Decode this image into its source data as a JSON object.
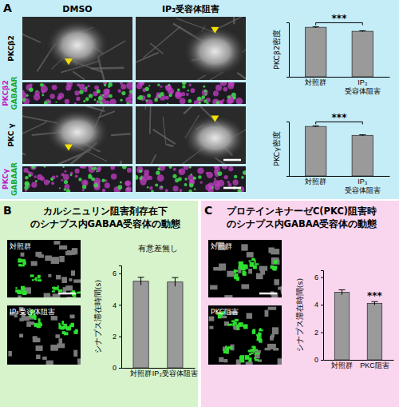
{
  "panels": {
    "A": {
      "label": "A",
      "columns": [
        "DMSO",
        "IP₃受容体阻害"
      ],
      "rows": [
        {
          "lines": [
            "PKCβ2"
          ]
        },
        {
          "lines": [
            "PKCβ2",
            "GABAAR"
          ]
        },
        {
          "lines": [
            "PKC γ"
          ]
        },
        {
          "lines": [
            "PKCγ",
            "GABAAR"
          ]
        }
      ]
    },
    "B": {
      "label": "B",
      "image_labels": [
        "対照群",
        "IP₃受容体阻害"
      ]
    },
    "C": {
      "label": "C",
      "image_labels": [
        "対照群",
        "PKC阻害"
      ]
    }
  },
  "chart_data": [
    {
      "type": "bar",
      "ylabel": "PKCβ2密度",
      "categories": [
        "対照群",
        "IP₃\n受容体阻害"
      ],
      "values": [
        1,
        0.92
      ],
      "errors": [
        0.012,
        0.012
      ],
      "ylim": [
        0,
        1.1
      ],
      "tick_labels": "x",
      "annotation": "***",
      "color": "#9a9a9a"
    },
    {
      "type": "bar",
      "ylabel": "PKCγ密度",
      "categories": [
        "対照群",
        "IP₃\n受容体阻害"
      ],
      "values": [
        1,
        0.82
      ],
      "errors": [
        0.012,
        0.012
      ],
      "ylim": [
        0,
        1.1
      ],
      "tick_labels": "x",
      "annotation": "***",
      "color": "#9a9a9a"
    },
    {
      "type": "bar",
      "title": "カルシニュリン阻害剤存在下\nのシナプス内GABAA受容体の動態",
      "ylabel": "シナプス滞在時間(s)",
      "categories": [
        "対照群",
        "IP₃受容体阻害"
      ],
      "values": [
        5.5,
        5.45
      ],
      "errors": [
        0.25,
        0.28
      ],
      "ylim": [
        0,
        6.5
      ],
      "yticks": [
        0,
        2,
        4,
        6
      ],
      "annotation": "有意差無し",
      "color": "#9a9a9a"
    },
    {
      "type": "bar",
      "title": "プロテインキナーゼC(PKC)阻害時\nのシナプス内GABAA受容体の動態",
      "ylabel": "シナプス滞在時間(s)",
      "categories": [
        "対照群",
        "PKC阻害"
      ],
      "values": [
        4.9,
        4.1
      ],
      "errors": [
        0.18,
        0.12
      ],
      "ylim": [
        0,
        6.5
      ],
      "yticks": [
        0,
        2,
        4,
        6
      ],
      "annotation": "***",
      "color": "#9a9a9a"
    }
  ]
}
